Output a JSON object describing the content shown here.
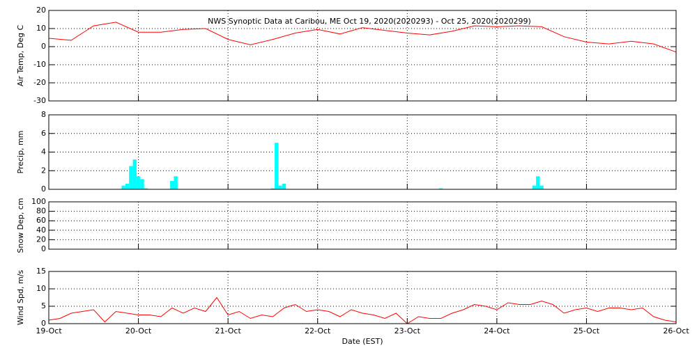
{
  "chart_data": [
    {
      "type": "line",
      "title": "NWS Synoptic Data at Caribou, ME   Oct 19, 2020(2020293) - Oct 25, 2020(2020299)",
      "ylabel": "Air Temp, Deg C",
      "color": "#ff0000",
      "x": [
        0,
        6,
        12,
        18,
        24,
        30,
        36,
        42,
        48,
        54,
        60,
        66,
        72,
        78,
        84,
        90,
        96,
        102,
        108,
        114,
        120,
        126,
        132,
        138,
        144,
        150,
        156,
        162,
        168
      ],
      "values": [
        4.6,
        3.5,
        11.5,
        13.5,
        8,
        8,
        9.5,
        10,
        4,
        1,
        4,
        7.5,
        9.5,
        7,
        10.5,
        9,
        7.5,
        6.5,
        8.5,
        11.5,
        11,
        11.5,
        11,
        5.5,
        2.5,
        1.5,
        3,
        1.5,
        -3
      ],
      "xlim": [
        0,
        168
      ],
      "xticks": [
        0,
        24,
        48,
        72,
        96,
        120,
        144,
        168
      ],
      "ylim": [
        -30,
        20
      ],
      "yticks": [
        -30,
        -20,
        -10,
        0,
        10,
        20
      ],
      "grid": true
    },
    {
      "type": "bar",
      "ylabel": "Precip, mm",
      "color": "#00ffff",
      "x": [
        20,
        21,
        22,
        23,
        24,
        25,
        26,
        33,
        34,
        60,
        61,
        62,
        63,
        105,
        130,
        131,
        132
      ],
      "values": [
        0.4,
        0.6,
        2.5,
        3.2,
        1.4,
        1.1,
        0.1,
        0.9,
        1.4,
        0.1,
        5.0,
        0.4,
        0.6,
        0.1,
        0.4,
        1.4,
        0.4
      ],
      "xlim": [
        0,
        168
      ],
      "xticks": [
        0,
        24,
        48,
        72,
        96,
        120,
        144,
        168
      ],
      "ylim": [
        0,
        8
      ],
      "yticks": [
        0,
        2,
        4,
        6,
        8
      ],
      "grid": true
    },
    {
      "type": "line",
      "ylabel": "Snow Dep, cm",
      "xlim": [
        0,
        168
      ],
      "xticks": [
        0,
        24,
        48,
        72,
        96,
        120,
        144,
        168
      ],
      "ylim": [
        0,
        100
      ],
      "yticks": [
        0,
        20,
        40,
        60,
        80,
        100
      ],
      "grid": true
    },
    {
      "type": "line",
      "ylabel": "Wind Spd, m/s",
      "xlabel": "Date (EST)",
      "color": "#ff0000",
      "x": [
        0,
        3,
        6,
        9,
        12,
        15,
        18,
        21,
        24,
        27,
        30,
        33,
        36,
        39,
        42,
        45,
        48,
        51,
        54,
        57,
        60,
        63,
        66,
        69,
        72,
        75,
        78,
        81,
        84,
        87,
        90,
        93,
        96,
        99,
        102,
        105,
        108,
        111,
        114,
        117,
        120,
        123,
        126,
        129,
        132,
        135,
        138,
        141,
        144,
        147,
        150,
        153,
        156,
        159,
        162,
        165,
        168
      ],
      "values": [
        1,
        1.5,
        3,
        3.5,
        4,
        0.5,
        3.5,
        3,
        2.5,
        2.5,
        2,
        4.5,
        3,
        4.5,
        3.5,
        7.5,
        2.5,
        3.5,
        1.5,
        2.5,
        2,
        4.5,
        5.5,
        3.5,
        4,
        3.5,
        2,
        4,
        3,
        2.5,
        1.5,
        3,
        0,
        2,
        1.5,
        1.5,
        3,
        4,
        5.5,
        5,
        4,
        6,
        5.5,
        5.5,
        6.5,
        5.5,
        3,
        4,
        4.5,
        3.5,
        4.5,
        4.5,
        4,
        4.5,
        2,
        1,
        0.5
      ],
      "xlim": [
        0,
        168
      ],
      "xticks": [
        {
          "value": 0,
          "label": "19-Oct"
        },
        {
          "value": 24,
          "label": "20-Oct"
        },
        {
          "value": 48,
          "label": "21-Oct"
        },
        {
          "value": 72,
          "label": "22-Oct"
        },
        {
          "value": 96,
          "label": "23-Oct"
        },
        {
          "value": 120,
          "label": "24-Oct"
        },
        {
          "value": 144,
          "label": "25-Oct"
        },
        {
          "value": 168,
          "label": "26-Oct"
        }
      ],
      "ylim": [
        0,
        15
      ],
      "yticks": [
        0,
        5,
        10,
        15
      ],
      "grid": true
    }
  ]
}
